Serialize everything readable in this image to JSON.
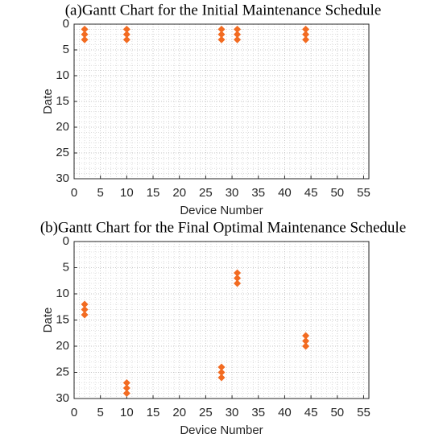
{
  "chart_data": [
    {
      "type": "scatter",
      "title": "(a)Gantt Chart for the Initial Maintenance Schedule",
      "xlabel": "Device Number",
      "ylabel": "Date",
      "x": [
        2,
        2,
        2,
        10,
        10,
        10,
        28,
        28,
        28,
        31,
        31,
        31,
        44,
        44,
        44
      ],
      "y": [
        1,
        2,
        3,
        1,
        2,
        3,
        1,
        2,
        3,
        1,
        2,
        3,
        1,
        2,
        3
      ],
      "color": "#f26b21",
      "marker": "diamond",
      "xlim": [
        0,
        56
      ],
      "xticks": [
        0,
        5,
        10,
        15,
        20,
        25,
        30,
        35,
        40,
        45,
        50,
        55
      ],
      "ylim": [
        0,
        30
      ],
      "yticks": [
        0,
        5,
        10,
        15,
        20,
        25,
        30
      ],
      "y_reversed": true,
      "grid": true,
      "minor_grid": true
    },
    {
      "type": "scatter",
      "title": "(b)Gantt Chart for the Final Optimal Maintenance Schedule",
      "xlabel": "Device Number",
      "ylabel": "Date",
      "x": [
        2,
        2,
        2,
        10,
        10,
        10,
        28,
        28,
        28,
        31,
        31,
        31,
        44,
        44,
        44
      ],
      "y": [
        12,
        13,
        14,
        27,
        28,
        29,
        24,
        25,
        26,
        6,
        7,
        8,
        18,
        19,
        20
      ],
      "color": "#f26b21",
      "marker": "diamond",
      "xlim": [
        0,
        56
      ],
      "xticks": [
        0,
        5,
        10,
        15,
        20,
        25,
        30,
        35,
        40,
        45,
        50,
        55
      ],
      "ylim": [
        0,
        30
      ],
      "yticks": [
        0,
        5,
        10,
        15,
        20,
        25,
        30
      ],
      "y_reversed": true,
      "grid": true,
      "minor_grid": true
    }
  ]
}
